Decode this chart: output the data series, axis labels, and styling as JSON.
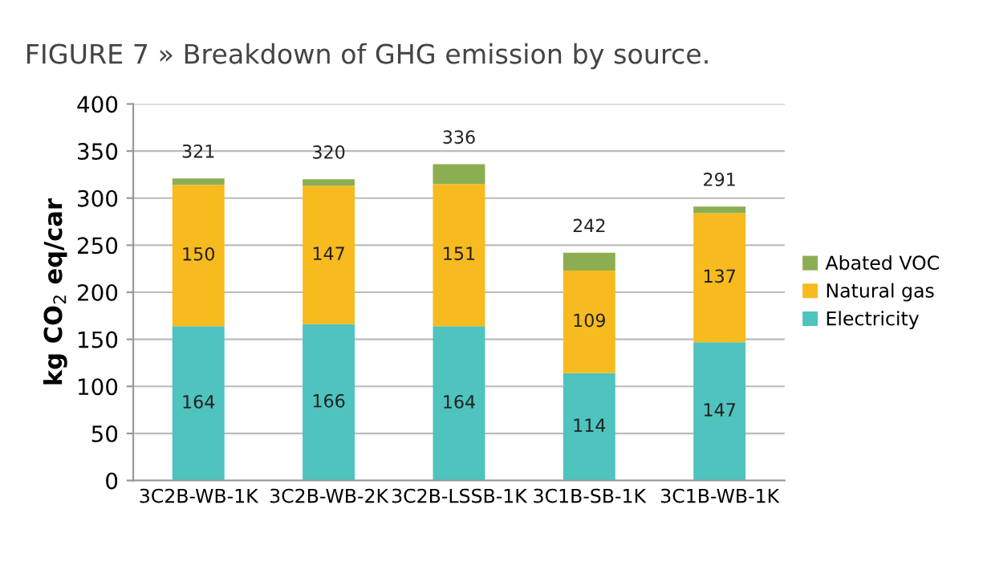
{
  "chart_data": {
    "type": "bar",
    "title": "FIGURE 7 » Breakdown of GHG emission by source.",
    "ylabel": "kg CO$_{2}$ eq/car",
    "categories": [
      "3C2B-WB-1K",
      "3C2B-WB-2K",
      "3C2B-LSSB-1K",
      "3C1B-SB-1K",
      "3C1B-WB-1K"
    ],
    "stacked": true,
    "series": [
      {
        "name": "Electricity",
        "color": "#4fc3be",
        "values": [
          164,
          166,
          164,
          114,
          147
        ],
        "value_labels": [
          "164",
          "166",
          "164",
          "114",
          "147"
        ]
      },
      {
        "name": "Natural gas",
        "color": "#f7bb1f",
        "values": [
          150,
          147,
          151,
          109,
          137
        ],
        "value_labels": [
          "150",
          "147",
          "151",
          "109",
          "137"
        ]
      },
      {
        "name": "Abated VOC",
        "color": "#8cae52",
        "values": [
          7,
          7,
          21,
          19,
          7
        ]
      }
    ],
    "totals": [
      "321",
      "320",
      "336",
      "242",
      "291"
    ],
    "ylim": [
      0,
      400
    ],
    "yticks": [
      0,
      50,
      100,
      150,
      200,
      250,
      300,
      350,
      400
    ],
    "grid": "y",
    "legend": "right"
  }
}
